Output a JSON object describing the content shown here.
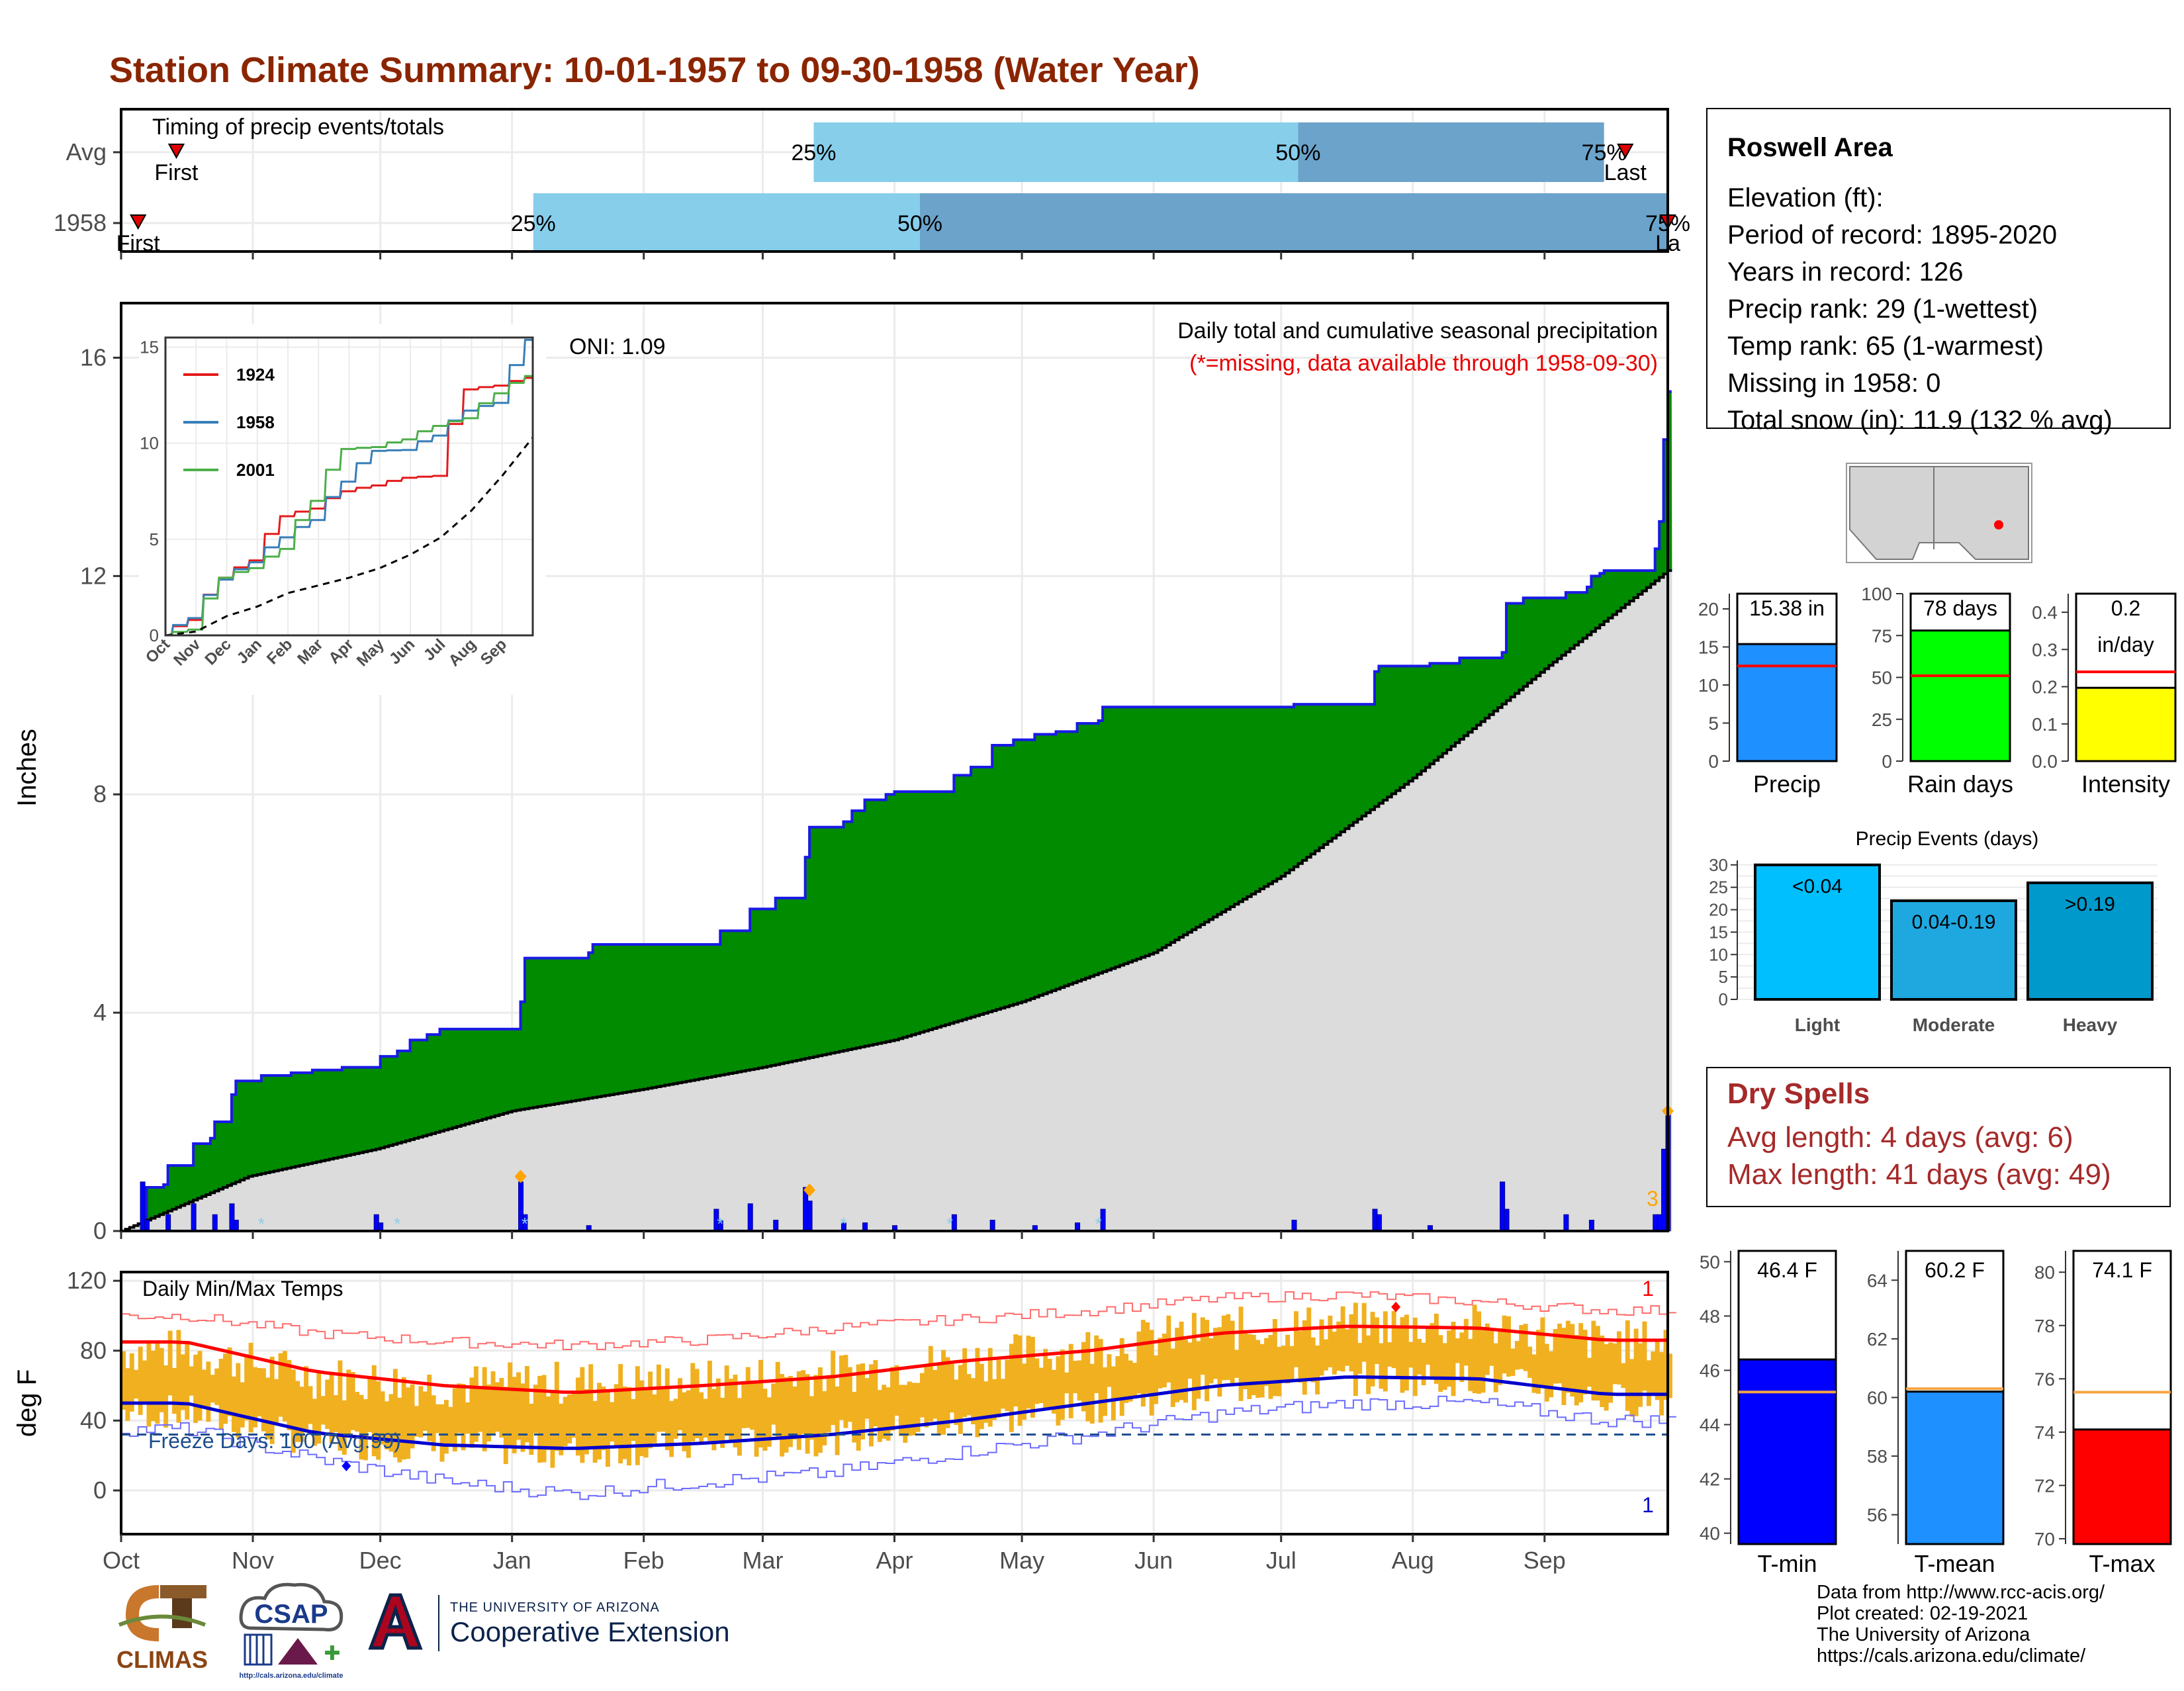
{
  "title": "Station Climate Summary: 10-01-1957 to 09-30-1958 (Water Year)",
  "timing": {
    "label": "Timing of precip events/totals",
    "rows": [
      {
        "label": "Avg",
        "first_day": 13,
        "p25_day": 163,
        "p50_day": 277,
        "p75_day": 349,
        "last_day": 354,
        "first_label": "First",
        "last_label": "Last",
        "p25": "25%",
        "p50": "50%",
        "p75": "75%"
      },
      {
        "label": "1958",
        "first_day": 4,
        "p25_day": 97,
        "p50_day": 188,
        "p75_day": 364,
        "last_day": 364,
        "first_label": "First",
        "last_label": "La",
        "p25": "25%",
        "p50": "50%",
        "p75": "75%"
      }
    ]
  },
  "precip_panel": {
    "y_axis_label": "Inches",
    "y_ticks": [
      "0",
      "4",
      "8",
      "12",
      "16"
    ],
    "oni": "ONI: 1.09",
    "header": "Daily total and cumulative seasonal precipitation",
    "missing_note": "(*=missing, data available through 1958-09-30)",
    "corner_count": "3"
  },
  "inset": {
    "y_ticks": [
      "0",
      "5",
      "10",
      "15"
    ],
    "x_ticks": [
      "Oct",
      "Nov",
      "Dec",
      "Jan",
      "Feb",
      "Mar",
      "Apr",
      "May",
      "Jun",
      "Jul",
      "Aug",
      "Sep"
    ],
    "legend": [
      {
        "name": "1924",
        "color": "#e41a1c"
      },
      {
        "name": "1958",
        "color": "#377eb8"
      },
      {
        "name": "2001",
        "color": "#4daf4a"
      }
    ]
  },
  "temp_panel": {
    "y_axis_label": "deg F",
    "label": "Daily Min/Max Temps",
    "freeze": "Freeze Days: 100 (Avg:99)",
    "y_ticks": [
      "0",
      "40",
      "80",
      "120"
    ],
    "count_top": "1",
    "count_bottom": "1"
  },
  "months": [
    "Oct",
    "Nov",
    "Dec",
    "Jan",
    "Feb",
    "Mar",
    "Apr",
    "May",
    "Jun",
    "Jul",
    "Aug",
    "Sep"
  ],
  "station": {
    "name": "Roswell Area",
    "lines": [
      "Elevation (ft):",
      "Period of record: 1895-2020",
      "Years in record: 126",
      "Precip rank: 29 (1-wettest)",
      "Temp rank: 65 (1-warmest)",
      "Missing in 1958: 0",
      "Total snow (in): 11.9 (132 % avg)"
    ]
  },
  "summary_bars": {
    "precip": {
      "label": "Precip",
      "value_text": "15.38 in",
      "value": 15.38,
      "avg": 12.5,
      "ymax": 22,
      "ticks": [
        "0",
        "5",
        "10",
        "15",
        "20"
      ],
      "color": "#1e90ff"
    },
    "rain_days": {
      "label": "Rain days",
      "value_text": "78 days",
      "value": 78,
      "avg": 51,
      "ymax": 100,
      "ticks": [
        "0",
        "25",
        "50",
        "75",
        "100"
      ],
      "color": "#00ff00"
    },
    "intensity": {
      "label": "Intensity",
      "value_text": "0.2",
      "value_text2": "in/day",
      "value": 0.197,
      "avg": 0.24,
      "ymax": 0.45,
      "ticks": [
        "0.0",
        "0.1",
        "0.2",
        "0.3",
        "0.4"
      ],
      "color": "#ffff00"
    }
  },
  "events": {
    "title": "Precip Events (days)",
    "ticks": [
      "0",
      "5",
      "10",
      "15",
      "20",
      "25",
      "30"
    ],
    "bars": [
      {
        "label": "Light",
        "range": "<0.04",
        "value": 30,
        "color": "#00bfff"
      },
      {
        "label": "Moderate",
        "range": "0.04-0.19",
        "value": 22,
        "color": "#1fa8e0"
      },
      {
        "label": "Heavy",
        "range": ">0.19",
        "value": 26,
        "color": "#0099cc"
      }
    ]
  },
  "dry_spells": {
    "title": "Dry Spells",
    "avg": "Avg length: 4 days (avg: 6)",
    "max": "Max length: 41 days (avg: 49)"
  },
  "temp_bars": {
    "tmin": {
      "label": "T-min",
      "value_text": "46.4 F",
      "value": 46.4,
      "avg": 45.2,
      "ymin": 39.6,
      "ymax": 50.4,
      "ticks": [
        "40",
        "42",
        "44",
        "46",
        "48",
        "50"
      ],
      "tick_vals": [
        40,
        42,
        44,
        46,
        48,
        50
      ],
      "color": "#0000ff"
    },
    "tmean": {
      "label": "T-mean",
      "value_text": "60.2 F",
      "value": 60.2,
      "avg": 60.3,
      "ymin": 55.0,
      "ymax": 65.0,
      "ticks": [
        "56",
        "58",
        "60",
        "62",
        "64"
      ],
      "tick_vals": [
        56,
        58,
        60,
        62,
        64
      ],
      "color": "#1e90ff"
    },
    "tmax": {
      "label": "T-max",
      "value_text": "74.1 F",
      "value": 74.1,
      "avg": 75.5,
      "ymin": 69.8,
      "ymax": 80.8,
      "ticks": [
        "70",
        "72",
        "74",
        "76",
        "78",
        "80"
      ],
      "tick_vals": [
        70,
        72,
        74,
        76,
        78,
        80
      ],
      "color": "#ff0000"
    }
  },
  "credits": [
    "Data from http://www.rcc-acis.org/",
    "Plot created: 02-19-2021",
    "The University of Arizona",
    "https://cals.arizona.edu/climate/"
  ],
  "logos": {
    "climas": "CLIMAS",
    "csap": "CSAP",
    "csap_url": "http://cals.arizona.edu/climate",
    "ua_top": "THE UNIVERSITY OF ARIZONA",
    "ua_bottom": "Cooperative Extension"
  },
  "chart_data": [
    {
      "type": "area",
      "title": "Daily total and cumulative seasonal precipitation",
      "ylabel": "Inches",
      "ylim": [
        0,
        17
      ],
      "x_unit": "day of water year (Oct 1 = 0)",
      "cumulative_1958": [
        [
          0,
          0
        ],
        [
          5,
          0.25
        ],
        [
          6,
          0.8
        ],
        [
          10,
          0.85
        ],
        [
          11,
          1.2
        ],
        [
          17,
          1.6
        ],
        [
          21,
          1.7
        ],
        [
          22,
          2.0
        ],
        [
          26,
          2.5
        ],
        [
          27,
          2.75
        ],
        [
          33,
          2.85
        ],
        [
          40,
          2.9
        ],
        [
          45,
          2.95
        ],
        [
          52,
          3.0
        ],
        [
          60,
          3.0
        ],
        [
          61,
          3.2
        ],
        [
          65,
          3.3
        ],
        [
          68,
          3.5
        ],
        [
          72,
          3.6
        ],
        [
          75,
          3.7
        ],
        [
          93,
          3.7
        ],
        [
          94,
          4.2
        ],
        [
          95,
          5.0
        ],
        [
          110,
          5.1
        ],
        [
          111,
          5.25
        ],
        [
          140,
          5.25
        ],
        [
          141,
          5.5
        ],
        [
          148,
          5.9
        ],
        [
          153,
          5.9
        ],
        [
          154,
          6.1
        ],
        [
          155,
          6.1
        ],
        [
          160,
          6.1
        ],
        [
          161,
          6.85
        ],
        [
          162,
          7.4
        ],
        [
          170,
          7.5
        ],
        [
          172,
          7.7
        ],
        [
          175,
          7.9
        ],
        [
          180,
          8.0
        ],
        [
          182,
          8.05
        ],
        [
          195,
          8.05
        ],
        [
          196,
          8.35
        ],
        [
          200,
          8.5
        ],
        [
          205,
          8.9
        ],
        [
          210,
          9.0
        ],
        [
          215,
          9.1
        ],
        [
          220,
          9.15
        ],
        [
          225,
          9.3
        ],
        [
          230,
          9.35
        ],
        [
          231,
          9.6
        ],
        [
          275,
          9.6
        ],
        [
          276,
          9.65
        ],
        [
          294,
          9.65
        ],
        [
          295,
          10.25
        ],
        [
          296,
          10.35
        ],
        [
          308,
          10.4
        ],
        [
          315,
          10.5
        ],
        [
          325,
          10.6
        ],
        [
          326,
          11.5
        ],
        [
          330,
          11.6
        ],
        [
          340,
          11.7
        ],
        [
          345,
          11.8
        ],
        [
          346,
          12.0
        ],
        [
          348,
          12.05
        ],
        [
          349,
          12.1
        ],
        [
          360,
          12.1
        ],
        [
          361,
          12.5
        ],
        [
          362,
          13.0
        ],
        [
          363,
          14.5
        ],
        [
          364,
          15.38
        ]
      ],
      "cumulative_avg": [
        [
          0,
          0
        ],
        [
          30,
          1.0
        ],
        [
          60,
          1.5
        ],
        [
          92,
          2.2
        ],
        [
          123,
          2.6
        ],
        [
          151,
          3.0
        ],
        [
          182,
          3.5
        ],
        [
          212,
          4.2
        ],
        [
          243,
          5.1
        ],
        [
          273,
          6.5
        ],
        [
          304,
          8.3
        ],
        [
          335,
          10.3
        ],
        [
          364,
          12.1
        ]
      ],
      "daily_events": [
        [
          5,
          0.9
        ],
        [
          6,
          0.2
        ],
        [
          11,
          0.3
        ],
        [
          17,
          0.5
        ],
        [
          22,
          0.3
        ],
        [
          26,
          0.5
        ],
        [
          27,
          0.2
        ],
        [
          60,
          0.3
        ],
        [
          61,
          0.15
        ],
        [
          94,
          0.9
        ],
        [
          95,
          0.3
        ],
        [
          110,
          0.1
        ],
        [
          140,
          0.4
        ],
        [
          141,
          0.2
        ],
        [
          148,
          0.5
        ],
        [
          154,
          0.2
        ],
        [
          161,
          0.8
        ],
        [
          162,
          0.55
        ],
        [
          170,
          0.15
        ],
        [
          175,
          0.15
        ],
        [
          182,
          0.1
        ],
        [
          196,
          0.3
        ],
        [
          205,
          0.2
        ],
        [
          215,
          0.1
        ],
        [
          225,
          0.15
        ],
        [
          231,
          0.4
        ],
        [
          276,
          0.2
        ],
        [
          295,
          0.4
        ],
        [
          296,
          0.3
        ],
        [
          308,
          0.1
        ],
        [
          325,
          0.9
        ],
        [
          326,
          0.4
        ],
        [
          340,
          0.3
        ],
        [
          346,
          0.2
        ],
        [
          361,
          0.3
        ],
        [
          362,
          0.3
        ],
        [
          363,
          1.5
        ],
        [
          364,
          2.2
        ]
      ]
    },
    {
      "type": "line",
      "title": "inset cumulative precipitation",
      "x": [
        "Oct",
        "Nov",
        "Dec",
        "Jan",
        "Feb",
        "Mar",
        "Apr",
        "May",
        "Jun",
        "Jul",
        "Aug",
        "Sep"
      ],
      "ylim": [
        0,
        15.5
      ],
      "series": [
        {
          "name": "1924",
          "values": [
            0.8,
            3.0,
            3.9,
            6.2,
            6.6,
            7.5,
            7.8,
            8.2,
            8.3,
            12.8,
            13.0,
            13.4
          ]
        },
        {
          "name": "1958",
          "values": [
            0.9,
            2.9,
            3.8,
            5.1,
            6.0,
            8.0,
            9.6,
            9.65,
            10.4,
            11.7,
            12.1,
            15.38
          ]
        },
        {
          "name": "2001",
          "values": [
            0.3,
            3.0,
            3.5,
            4.5,
            7.0,
            9.7,
            9.8,
            10.2,
            10.9,
            11.3,
            12.6,
            13.5
          ]
        },
        {
          "values": [
            0.2,
            1.0,
            1.5,
            2.2,
            2.6,
            3.0,
            3.5,
            4.2,
            5.1,
            6.5,
            8.3,
            10.3
          ]
        }
      ]
    },
    {
      "type": "line",
      "title": "Daily Min/Max Temps",
      "ylabel": "deg F",
      "ylim": [
        -25,
        125
      ],
      "x": [
        "Oct",
        "Nov",
        "Dec",
        "Jan",
        "Feb",
        "Mar",
        "Apr",
        "May",
        "Jun",
        "Jul",
        "Aug",
        "Sep"
      ],
      "series": [
        {
          "values": [
            85,
            68,
            60,
            56,
            60,
            65,
            74,
            80,
            90,
            94,
            93,
            86
          ]
        },
        {
          "values": [
            50,
            33,
            26,
            24,
            27,
            32,
            40,
            50,
            60,
            65,
            64,
            55
          ]
        },
        {
          "values": [
            100,
            90,
            85,
            83,
            86,
            93,
            98,
            103,
            110,
            112,
            108,
            103
          ]
        },
        {
          "values": [
            35,
            18,
            5,
            -2,
            5,
            10,
            22,
            32,
            44,
            50,
            50,
            40
          ]
        },
        {
          "values": [
            80,
            65,
            60,
            62,
            62,
            68,
            74,
            82,
            92,
            95,
            94,
            85
          ]
        },
        {
          "values": [
            45,
            28,
            25,
            22,
            26,
            30,
            38,
            48,
            58,
            64,
            64,
            52
          ]
        }
      ]
    },
    {
      "type": "bar",
      "categories": [
        "Precip",
        "Rain days",
        "Intensity"
      ],
      "series": [
        {
          "values": [
            15.38,
            78,
            0.2
          ]
        }
      ]
    },
    {
      "type": "bar",
      "title": "Precip Events (days)",
      "categories": [
        "Light",
        "Moderate",
        "Heavy"
      ],
      "values": [
        30,
        22,
        26
      ]
    },
    {
      "type": "bar",
      "categories": [
        "T-min",
        "T-mean",
        "T-max"
      ],
      "series": [
        {
          "values": [
            46.4,
            60.2,
            74.1
          ]
        }
      ]
    }
  ]
}
